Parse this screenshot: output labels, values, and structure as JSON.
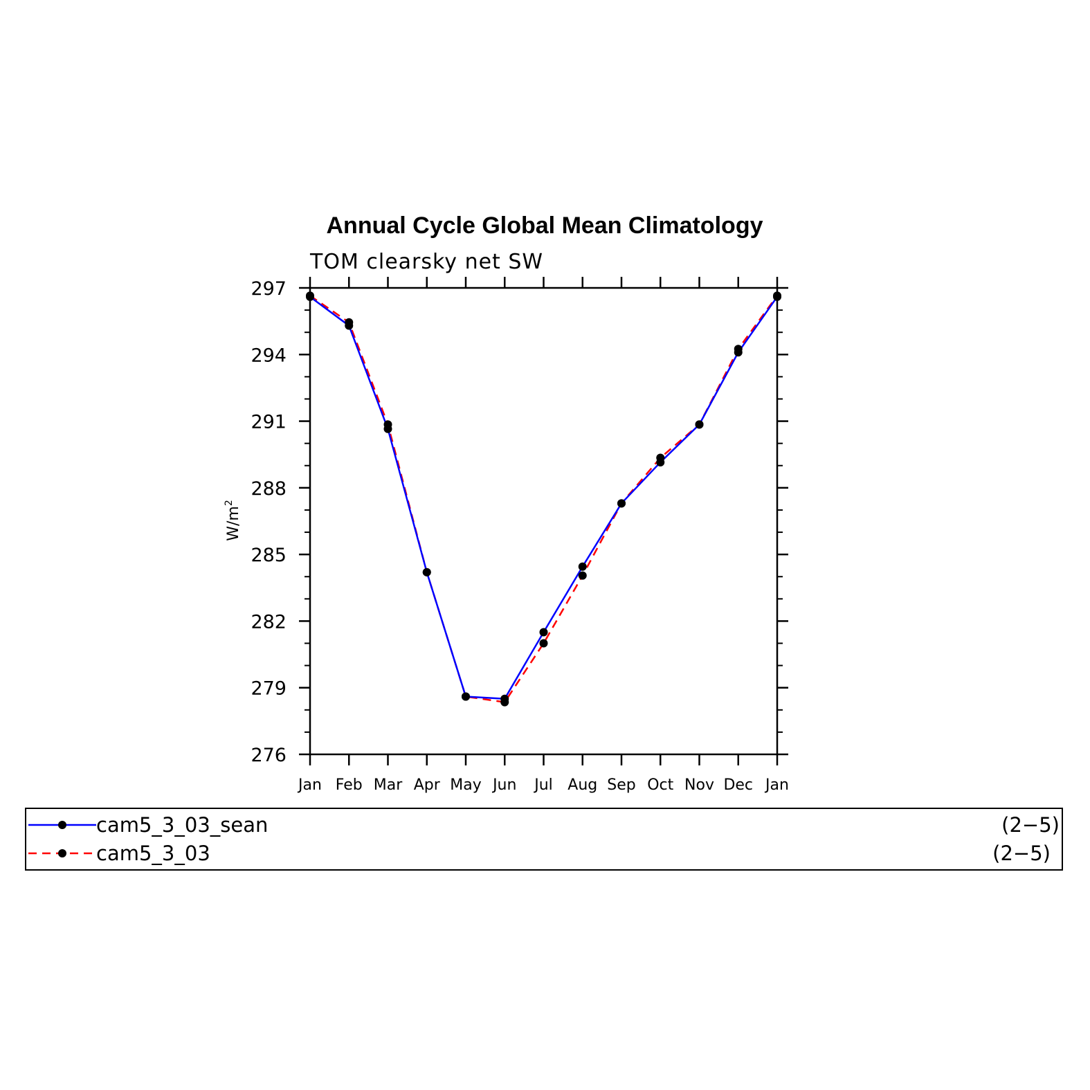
{
  "chart_data": {
    "type": "line",
    "title": "Annual Cycle Global Mean Climatology",
    "subtitle": "TOM clearsky net SW",
    "ylabel": "W/m",
    "ylabel_sup": "2",
    "xlabel": "",
    "categories": [
      "Jan",
      "Feb",
      "Mar",
      "Apr",
      "May",
      "Jun",
      "Jul",
      "Aug",
      "Sep",
      "Oct",
      "Nov",
      "Dec",
      "Jan"
    ],
    "ylim": [
      276,
      297
    ],
    "yticks": [
      276,
      279,
      282,
      285,
      288,
      291,
      294,
      297
    ],
    "grid": false,
    "legend_position": "bottom",
    "series": [
      {
        "name": "cam5_3_03_sean",
        "color": "#0000ff",
        "dash": "solid",
        "marker": "filled-circle",
        "legend_note": "(2−5)",
        "values": [
          296.6,
          295.3,
          290.65,
          284.2,
          278.6,
          278.5,
          281.5,
          284.45,
          287.3,
          289.15,
          290.85,
          294.1,
          296.6
        ]
      },
      {
        "name": "cam5_3_03",
        "color": "#ff0000",
        "dash": "dashed",
        "marker": "filled-circle",
        "legend_note": "(2−5)",
        "values": [
          296.65,
          295.45,
          290.85,
          284.2,
          278.6,
          278.35,
          281.0,
          284.05,
          287.3,
          289.35,
          290.85,
          294.25,
          296.65
        ]
      }
    ]
  }
}
